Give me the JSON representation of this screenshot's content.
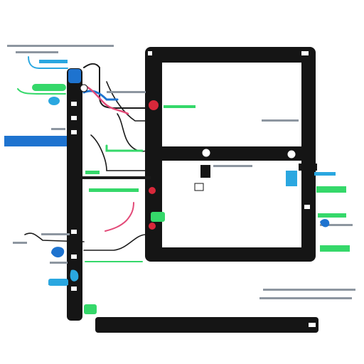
{
  "colors": {
    "frame": "#151515",
    "pane": "#ffffff",
    "blue": "#1e73cf",
    "cyan": "#2aa7e0",
    "green": "#35d86a",
    "pink": "#e34a78",
    "red": "#d8283a",
    "gray": "#8d96a0",
    "dark_line": "#1b1b1b"
  },
  "icons": {
    "junction": "bullet-dot",
    "marker": "blob-marker",
    "connector": "plug-connector"
  }
}
